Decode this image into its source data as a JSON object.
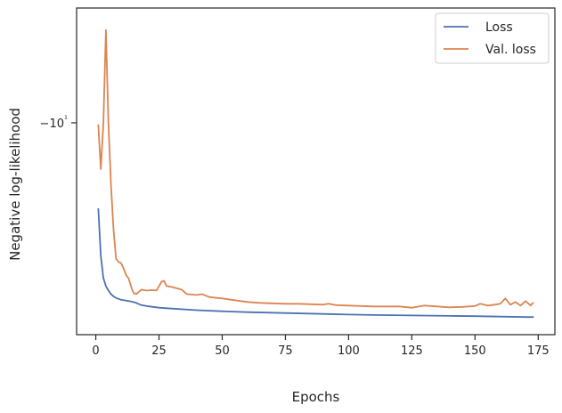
{
  "chart_data": {
    "type": "line",
    "title": "",
    "xlabel": "Epochs",
    "ylabel": "Negative log-likelihood",
    "xlim": [
      -7.6,
      181.6
    ],
    "ylim": [
      -5.2,
      -12.6
    ],
    "xticks": [
      0,
      25,
      50,
      75,
      100,
      125,
      150,
      175
    ],
    "xtick_labels": [
      "0",
      "25",
      "50",
      "75",
      "100",
      "125",
      "150",
      "175"
    ],
    "yticks": [
      -10
    ],
    "ytick_labels": [
      "−10¹"
    ],
    "y_scale": "symlog",
    "grid": false,
    "legend_position": "top-right",
    "series": [
      {
        "name": "Loss",
        "color": "#4c72b0",
        "x": [
          1,
          2,
          3,
          4,
          5,
          6,
          7,
          8,
          10,
          12,
          14,
          16,
          18,
          20,
          25,
          30,
          40,
          50,
          60,
          75,
          90,
          100,
          110,
          125,
          140,
          150,
          160,
          170,
          173
        ],
        "y": [
          -8.05,
          -6.98,
          -6.48,
          -6.3,
          -6.2,
          -6.12,
          -6.07,
          -6.03,
          -5.99,
          -5.97,
          -5.95,
          -5.92,
          -5.87,
          -5.85,
          -5.81,
          -5.79,
          -5.755,
          -5.73,
          -5.71,
          -5.69,
          -5.67,
          -5.655,
          -5.645,
          -5.635,
          -5.625,
          -5.62,
          -5.61,
          -5.6,
          -5.6
        ]
      },
      {
        "name": "Val. loss",
        "color": "#dd8452",
        "x": [
          1,
          2,
          3,
          4,
          5,
          6,
          7,
          8,
          9,
          10,
          11,
          12,
          13,
          14,
          15,
          16,
          18,
          20,
          22,
          24,
          26,
          27,
          28,
          30,
          32,
          34,
          36,
          40,
          42,
          45,
          50,
          55,
          60,
          65,
          70,
          75,
          80,
          85,
          90,
          92,
          95,
          100,
          105,
          110,
          115,
          120,
          125,
          130,
          135,
          140,
          145,
          150,
          152,
          155,
          158,
          160,
          162,
          164,
          166,
          168,
          170,
          172,
          173
        ],
        "y": [
          -9.95,
          -8.95,
          -10.0,
          -12.1,
          -9.95,
          -8.6,
          -7.6,
          -6.92,
          -6.85,
          -6.82,
          -6.7,
          -6.55,
          -6.47,
          -6.28,
          -6.14,
          -6.12,
          -6.22,
          -6.2,
          -6.21,
          -6.2,
          -6.4,
          -6.42,
          -6.3,
          -6.28,
          -6.25,
          -6.22,
          -6.12,
          -6.1,
          -6.12,
          -6.05,
          -6.02,
          -5.98,
          -5.94,
          -5.92,
          -5.91,
          -5.9,
          -5.9,
          -5.89,
          -5.88,
          -5.9,
          -5.87,
          -5.86,
          -5.85,
          -5.84,
          -5.84,
          -5.84,
          -5.81,
          -5.86,
          -5.84,
          -5.82,
          -5.83,
          -5.85,
          -5.9,
          -5.86,
          -5.88,
          -5.9,
          -6.02,
          -5.88,
          -5.94,
          -5.86,
          -5.96,
          -5.86,
          -5.92
        ]
      }
    ]
  }
}
